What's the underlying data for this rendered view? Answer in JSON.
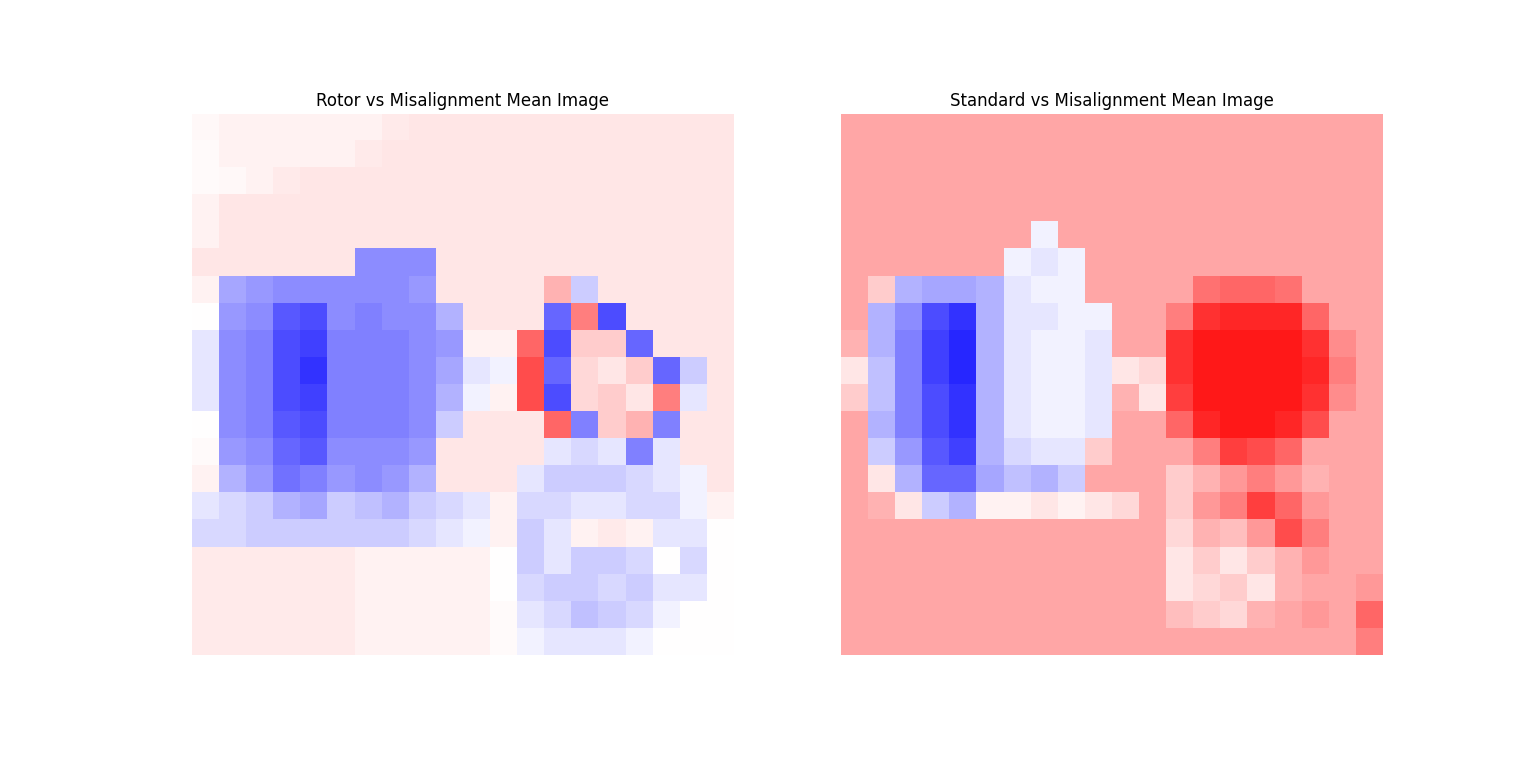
{
  "chart_data": [
    {
      "type": "heatmap",
      "title": "Rotor vs Misalignment Mean Image",
      "color": "bwr",
      "tick_labels": false,
      "color_range": [
        -1,
        1
      ],
      "cells": [
        [
          0.03,
          0.05,
          0.05,
          0.05,
          0.05,
          0.05,
          0.05,
          0.08,
          0.1,
          0.1,
          0.1,
          0.1,
          0.1,
          0.1,
          0.1,
          0.1,
          0.1,
          0.1,
          0.1,
          0.1
        ],
        [
          0.02,
          0.05,
          0.05,
          0.05,
          0.05,
          0.05,
          0.08,
          0.1,
          0.1,
          0.1,
          0.1,
          0.1,
          0.1,
          0.1,
          0.1,
          0.1,
          0.1,
          0.1,
          0.1,
          0.1
        ],
        [
          0.02,
          0.03,
          0.05,
          0.08,
          0.1,
          0.1,
          0.1,
          0.1,
          0.1,
          0.1,
          0.1,
          0.1,
          0.1,
          0.1,
          0.1,
          0.1,
          0.1,
          0.1,
          0.1,
          0.1
        ],
        [
          0.05,
          0.1,
          0.1,
          0.1,
          0.1,
          0.1,
          0.1,
          0.1,
          0.1,
          0.1,
          0.1,
          0.1,
          0.1,
          0.1,
          0.1,
          0.1,
          0.1,
          0.1,
          0.1,
          0.1
        ],
        [
          0.05,
          0.1,
          0.1,
          0.1,
          0.1,
          0.1,
          0.1,
          0.1,
          0.1,
          0.1,
          0.1,
          0.1,
          0.1,
          0.1,
          0.1,
          0.1,
          0.1,
          0.1,
          0.1,
          0.1
        ],
        [
          0.1,
          0.1,
          0.1,
          0.1,
          0.1,
          0.1,
          -0.45,
          -0.45,
          -0.45,
          0.1,
          0.1,
          0.1,
          0.1,
          0.1,
          0.1,
          0.1,
          0.1,
          0.1,
          0.1,
          0.1
        ],
        [
          0.05,
          -0.35,
          -0.4,
          -0.45,
          -0.45,
          -0.45,
          -0.45,
          -0.45,
          -0.4,
          0.1,
          0.1,
          0.1,
          0.1,
          0.3,
          -0.2,
          0.1,
          0.1,
          0.1,
          0.1,
          0.1
        ],
        [
          0.0,
          -0.4,
          -0.45,
          -0.65,
          -0.7,
          -0.45,
          -0.5,
          -0.45,
          -0.45,
          -0.3,
          0.1,
          0.1,
          0.1,
          -0.6,
          0.5,
          -0.7,
          0.1,
          0.1,
          0.1,
          0.1
        ],
        [
          -0.1,
          -0.45,
          -0.5,
          -0.7,
          -0.75,
          -0.5,
          -0.5,
          -0.5,
          -0.45,
          -0.4,
          0.05,
          0.05,
          0.6,
          -0.7,
          0.2,
          0.2,
          -0.6,
          0.1,
          0.1,
          0.1
        ],
        [
          -0.1,
          -0.45,
          -0.5,
          -0.7,
          -0.8,
          -0.5,
          -0.5,
          -0.5,
          -0.45,
          -0.35,
          -0.1,
          -0.05,
          0.7,
          -0.6,
          0.15,
          0.1,
          0.2,
          -0.6,
          -0.2,
          0.1
        ],
        [
          -0.1,
          -0.45,
          -0.5,
          -0.7,
          -0.75,
          -0.5,
          -0.5,
          -0.5,
          -0.45,
          -0.3,
          -0.05,
          0.05,
          0.7,
          -0.7,
          0.15,
          0.2,
          0.1,
          0.5,
          -0.1,
          0.1
        ],
        [
          0.0,
          -0.45,
          -0.5,
          -0.65,
          -0.7,
          -0.5,
          -0.5,
          -0.5,
          -0.45,
          -0.2,
          0.1,
          0.1,
          0.1,
          0.6,
          -0.5,
          0.2,
          0.3,
          -0.5,
          0.1,
          0.1
        ],
        [
          0.02,
          -0.4,
          -0.45,
          -0.6,
          -0.65,
          -0.45,
          -0.45,
          -0.45,
          -0.4,
          0.1,
          0.1,
          0.1,
          0.1,
          -0.1,
          -0.15,
          -0.1,
          -0.5,
          -0.1,
          0.1,
          0.1
        ],
        [
          0.05,
          -0.3,
          -0.4,
          -0.55,
          -0.5,
          -0.4,
          -0.45,
          -0.4,
          -0.3,
          0.1,
          0.1,
          0.1,
          -0.1,
          -0.2,
          -0.2,
          -0.2,
          -0.15,
          -0.1,
          -0.05,
          0.1
        ],
        [
          -0.1,
          -0.15,
          -0.2,
          -0.3,
          -0.35,
          -0.2,
          -0.25,
          -0.3,
          -0.2,
          -0.15,
          -0.1,
          0.05,
          -0.15,
          -0.15,
          -0.1,
          -0.1,
          -0.15,
          -0.15,
          -0.05,
          0.05
        ],
        [
          -0.15,
          -0.15,
          -0.2,
          -0.2,
          -0.2,
          -0.2,
          -0.2,
          -0.2,
          -0.15,
          -0.1,
          -0.05,
          0.05,
          -0.2,
          -0.1,
          0.05,
          0.08,
          0.05,
          -0.1,
          -0.1,
          0.0
        ],
        [
          0.08,
          0.08,
          0.08,
          0.08,
          0.08,
          0.08,
          0.05,
          0.05,
          0.05,
          0.05,
          0.05,
          0.0,
          -0.2,
          -0.1,
          -0.2,
          -0.2,
          -0.15,
          0.0,
          -0.15,
          0.0
        ],
        [
          0.08,
          0.08,
          0.08,
          0.08,
          0.08,
          0.08,
          0.05,
          0.05,
          0.05,
          0.05,
          0.05,
          0.0,
          -0.15,
          -0.2,
          -0.2,
          -0.15,
          -0.2,
          -0.1,
          -0.1,
          0.0
        ],
        [
          0.08,
          0.08,
          0.08,
          0.08,
          0.08,
          0.08,
          0.05,
          0.05,
          0.05,
          0.05,
          0.05,
          0.02,
          -0.1,
          -0.15,
          -0.25,
          -0.2,
          -0.15,
          -0.05,
          0.0,
          0.0
        ],
        [
          0.08,
          0.08,
          0.08,
          0.08,
          0.08,
          0.08,
          0.05,
          0.05,
          0.05,
          0.05,
          0.05,
          0.02,
          -0.05,
          -0.1,
          -0.1,
          -0.1,
          -0.05,
          0.0,
          0.0,
          0.0
        ]
      ]
    },
    {
      "type": "heatmap",
      "title": "Standard vs Misalignment Mean Image",
      "color": "bwr",
      "tick_labels": false,
      "color_range": [
        -1,
        1
      ],
      "cells": [
        [
          0.35,
          0.35,
          0.35,
          0.35,
          0.35,
          0.35,
          0.35,
          0.35,
          0.35,
          0.35,
          0.35,
          0.35,
          0.35,
          0.35,
          0.35,
          0.35,
          0.35,
          0.35,
          0.35,
          0.35
        ],
        [
          0.35,
          0.35,
          0.35,
          0.35,
          0.35,
          0.35,
          0.35,
          0.35,
          0.35,
          0.35,
          0.35,
          0.35,
          0.35,
          0.35,
          0.35,
          0.35,
          0.35,
          0.35,
          0.35,
          0.35
        ],
        [
          0.35,
          0.35,
          0.35,
          0.35,
          0.35,
          0.35,
          0.35,
          0.35,
          0.35,
          0.35,
          0.35,
          0.35,
          0.35,
          0.35,
          0.35,
          0.35,
          0.35,
          0.35,
          0.35,
          0.35
        ],
        [
          0.35,
          0.35,
          0.35,
          0.35,
          0.35,
          0.35,
          0.35,
          0.35,
          0.35,
          0.35,
          0.35,
          0.35,
          0.35,
          0.35,
          0.35,
          0.35,
          0.35,
          0.35,
          0.35,
          0.35
        ],
        [
          0.35,
          0.35,
          0.35,
          0.35,
          0.35,
          0.35,
          0.35,
          -0.05,
          0.35,
          0.35,
          0.35,
          0.35,
          0.35,
          0.35,
          0.35,
          0.35,
          0.35,
          0.35,
          0.35,
          0.35
        ],
        [
          0.35,
          0.35,
          0.35,
          0.35,
          0.35,
          0.35,
          -0.05,
          -0.1,
          -0.05,
          0.35,
          0.35,
          0.35,
          0.35,
          0.35,
          0.35,
          0.35,
          0.35,
          0.35,
          0.35,
          0.35
        ],
        [
          0.35,
          0.2,
          -0.3,
          -0.35,
          -0.35,
          -0.3,
          -0.1,
          -0.05,
          -0.05,
          0.35,
          0.35,
          0.35,
          0.35,
          0.55,
          0.6,
          0.6,
          0.55,
          0.35,
          0.35,
          0.35
        ],
        [
          0.35,
          -0.3,
          -0.45,
          -0.7,
          -0.8,
          -0.3,
          -0.1,
          -0.1,
          -0.05,
          -0.05,
          0.35,
          0.35,
          0.5,
          0.8,
          0.85,
          0.85,
          0.85,
          0.6,
          0.35,
          0.35
        ],
        [
          0.3,
          -0.3,
          -0.5,
          -0.75,
          -0.85,
          -0.3,
          -0.1,
          -0.05,
          -0.05,
          -0.1,
          0.35,
          0.35,
          0.8,
          0.9,
          0.9,
          0.9,
          0.9,
          0.8,
          0.45,
          0.35
        ],
        [
          0.1,
          -0.25,
          -0.5,
          -0.75,
          -0.85,
          -0.3,
          -0.1,
          -0.05,
          -0.05,
          -0.1,
          0.1,
          0.15,
          0.8,
          0.9,
          0.9,
          0.9,
          0.9,
          0.85,
          0.5,
          0.35
        ],
        [
          0.2,
          -0.25,
          -0.5,
          -0.7,
          -0.8,
          -0.3,
          -0.1,
          -0.05,
          -0.05,
          -0.1,
          0.3,
          0.1,
          0.75,
          0.9,
          0.9,
          0.9,
          0.9,
          0.8,
          0.45,
          0.35
        ],
        [
          0.35,
          -0.3,
          -0.5,
          -0.7,
          -0.8,
          -0.3,
          -0.1,
          -0.05,
          -0.05,
          -0.1,
          0.35,
          0.35,
          0.6,
          0.85,
          0.9,
          0.9,
          0.85,
          0.7,
          0.35,
          0.35
        ],
        [
          0.35,
          -0.2,
          -0.4,
          -0.65,
          -0.75,
          -0.3,
          -0.15,
          -0.1,
          -0.1,
          0.2,
          0.35,
          0.35,
          0.35,
          0.5,
          0.75,
          0.7,
          0.6,
          0.35,
          0.35,
          0.35
        ],
        [
          0.35,
          0.1,
          -0.3,
          -0.6,
          -0.6,
          -0.35,
          -0.25,
          -0.3,
          -0.2,
          0.35,
          0.35,
          0.35,
          0.2,
          0.3,
          0.4,
          0.5,
          0.4,
          0.3,
          0.35,
          0.35
        ],
        [
          0.35,
          0.3,
          0.1,
          -0.2,
          -0.3,
          0.05,
          0.05,
          0.1,
          0.05,
          0.1,
          0.15,
          0.35,
          0.2,
          0.4,
          0.5,
          0.75,
          0.6,
          0.4,
          0.35,
          0.35
        ],
        [
          0.35,
          0.35,
          0.35,
          0.35,
          0.35,
          0.35,
          0.35,
          0.35,
          0.35,
          0.35,
          0.35,
          0.35,
          0.15,
          0.3,
          0.25,
          0.4,
          0.7,
          0.5,
          0.35,
          0.35
        ],
        [
          0.35,
          0.35,
          0.35,
          0.35,
          0.35,
          0.35,
          0.35,
          0.35,
          0.35,
          0.35,
          0.35,
          0.35,
          0.1,
          0.2,
          0.1,
          0.2,
          0.3,
          0.4,
          0.35,
          0.35
        ],
        [
          0.35,
          0.35,
          0.35,
          0.35,
          0.35,
          0.35,
          0.35,
          0.35,
          0.35,
          0.35,
          0.35,
          0.35,
          0.1,
          0.15,
          0.2,
          0.1,
          0.3,
          0.35,
          0.35,
          0.4
        ],
        [
          0.35,
          0.35,
          0.35,
          0.35,
          0.35,
          0.35,
          0.35,
          0.35,
          0.35,
          0.35,
          0.35,
          0.35,
          0.25,
          0.2,
          0.15,
          0.3,
          0.35,
          0.4,
          0.35,
          0.6
        ],
        [
          0.35,
          0.35,
          0.35,
          0.35,
          0.35,
          0.35,
          0.35,
          0.35,
          0.35,
          0.35,
          0.35,
          0.35,
          0.35,
          0.35,
          0.35,
          0.35,
          0.35,
          0.35,
          0.35,
          0.5
        ]
      ]
    }
  ]
}
